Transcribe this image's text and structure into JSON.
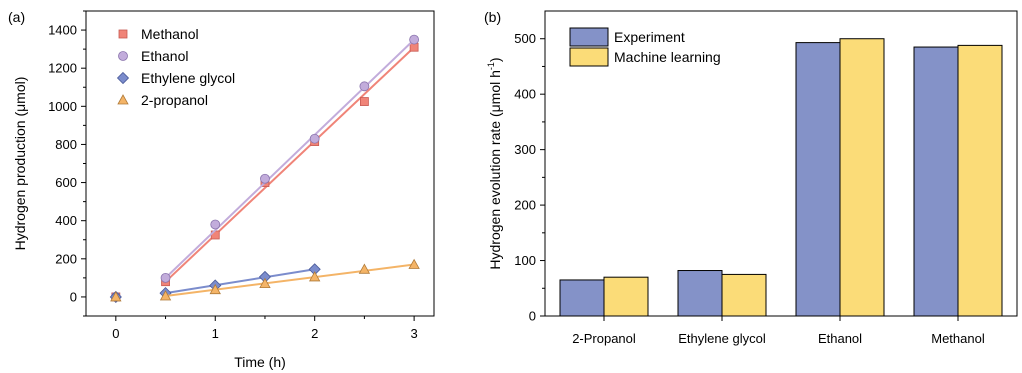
{
  "chart_data": [
    {
      "panel_label": "(a)",
      "type": "scatter",
      "xlabel": "Time (h)",
      "ylabel": "Hydrogen production (μmol)",
      "xlim": [
        -0.3,
        3.2
      ],
      "ylim": [
        -100,
        1500
      ],
      "xticks": [
        0,
        1,
        2,
        3
      ],
      "yticks": [
        0,
        200,
        400,
        600,
        800,
        1000,
        1200,
        1400
      ],
      "legend_position": "top-left",
      "series": [
        {
          "name": "Methanol",
          "marker": "square",
          "color": "#f08478",
          "edge": "#c85a52",
          "x": [
            0,
            0.5,
            1,
            1.5,
            2,
            2.5,
            3
          ],
          "y": [
            0,
            80,
            325,
            600,
            815,
            1025,
            1310
          ],
          "fit": {
            "x": [
              0.5,
              3
            ],
            "y": [
              80,
              1310
            ]
          }
        },
        {
          "name": "Ethanol",
          "marker": "circle",
          "color": "#c2acdb",
          "edge": "#8a74ad",
          "x": [
            0,
            0.5,
            1,
            1.5,
            2,
            2.5,
            3
          ],
          "y": [
            0,
            100,
            380,
            620,
            830,
            1105,
            1350
          ],
          "fit": {
            "x": [
              0.5,
              3
            ],
            "y": [
              100,
              1350
            ]
          }
        },
        {
          "name": "Ethylene glycol",
          "marker": "diamond",
          "color": "#7b8ccc",
          "edge": "#4a5a99",
          "x": [
            0,
            0.5,
            1,
            1.5,
            2
          ],
          "y": [
            0,
            20,
            60,
            105,
            145
          ],
          "fit": {
            "x": [
              0.5,
              2
            ],
            "y": [
              20,
              145
            ]
          }
        },
        {
          "name": "2-propanol",
          "marker": "triangle",
          "color": "#f4b467",
          "edge": "#b07b3a",
          "x": [
            0,
            0.5,
            1,
            1.5,
            2,
            2.5,
            3
          ],
          "y": [
            0,
            5,
            38,
            70,
            105,
            145,
            170
          ],
          "fit": {
            "x": [
              0.5,
              3
            ],
            "y": [
              5,
              170
            ]
          }
        }
      ]
    },
    {
      "panel_label": "(b)",
      "type": "bar",
      "xlabel": "",
      "ylabel": "Hydrogen evolution rate (μmol h",
      "ylabel_sup": "-1",
      "ylabel_close": ")",
      "categories": [
        "2-Propanol",
        "Ethylene glycol",
        "Ethanol",
        "Methanol"
      ],
      "ylim": [
        0,
        550
      ],
      "yticks": [
        0,
        100,
        200,
        300,
        400,
        500
      ],
      "legend_position": "top-left",
      "series": [
        {
          "name": "Experiment",
          "color": "#8492c8",
          "values": [
            65,
            82,
            493,
            485
          ]
        },
        {
          "name": "Machine learning",
          "color": "#fbdc78",
          "values": [
            70,
            75,
            500,
            488
          ]
        }
      ]
    }
  ]
}
